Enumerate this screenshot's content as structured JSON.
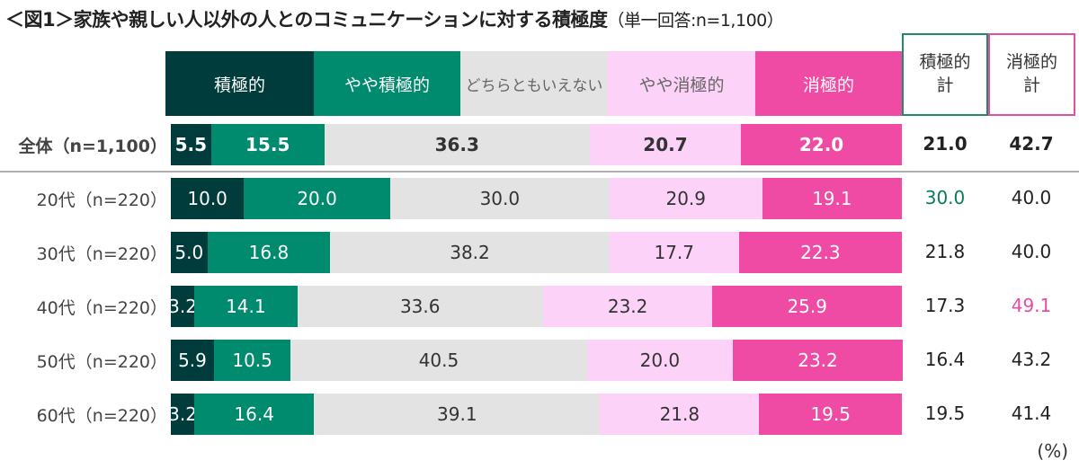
{
  "title": {
    "main": "＜図1＞家族や親しい人以外の人とのコミュニケーションに対する積極度",
    "sub": "（単一回答:n=1,100）"
  },
  "colors": {
    "very_positive": "#003c3c",
    "positive": "#008a6e",
    "neutral": "#e3e3e3",
    "negative": "#fcd2f8",
    "very_negative": "#f04ba4",
    "positive_total_border": "#1f8a6a",
    "negative_total_border": "#e0509f",
    "highlight_green": "#0a7a5c",
    "highlight_pink": "#e0509f"
  },
  "chart_data": {
    "type": "bar",
    "orientation": "horizontal",
    "stacked": true,
    "title": "＜図1＞家族や親しい人以外の人とのコミュニケーションに対する積極度（単一回答:n=1,100）",
    "unit": "(%)",
    "categories": [
      "全体（n=1,100）",
      "20代（n=220）",
      "30代（n=220）",
      "40代（n=220）",
      "50代（n=220）",
      "60代（n=220）"
    ],
    "series": [
      {
        "name": "積極的",
        "values": [
          5.5,
          10.0,
          5.0,
          3.2,
          5.9,
          3.2
        ]
      },
      {
        "name": "やや積極的",
        "values": [
          15.5,
          20.0,
          16.8,
          14.1,
          10.5,
          16.4
        ]
      },
      {
        "name": "どちらともいえない",
        "values": [
          36.3,
          30.0,
          38.2,
          33.6,
          40.5,
          39.1
        ]
      },
      {
        "name": "やや消極的",
        "values": [
          20.7,
          20.9,
          17.7,
          23.2,
          20.0,
          21.8
        ]
      },
      {
        "name": "消極的",
        "values": [
          22.0,
          19.1,
          22.3,
          25.9,
          23.2,
          19.5
        ]
      }
    ],
    "labels": [
      [
        "5.5",
        "15.5",
        "36.3",
        "20.7",
        "22.0"
      ],
      [
        "10.0",
        "20.0",
        "30.0",
        "20.9",
        "19.1"
      ],
      [
        "5.0",
        "16.8",
        "38.2",
        "17.7",
        "22.3"
      ],
      [
        "3.2",
        "14.1",
        "33.6",
        "23.2",
        "25.9"
      ],
      [
        "5.9",
        "10.5",
        "40.5",
        "20.0",
        "23.2"
      ],
      [
        "3.2",
        "16.4",
        "39.1",
        "21.8",
        "19.5"
      ]
    ],
    "totals": {
      "headers": [
        "積極的\n計",
        "消極的\n計"
      ],
      "positive": [
        "21.0",
        "30.0",
        "21.8",
        "17.3",
        "16.4",
        "19.5"
      ],
      "negative": [
        "42.7",
        "40.0",
        "40.0",
        "49.1",
        "43.2",
        "41.4"
      ],
      "highlight_positive_row": 1,
      "highlight_negative_row": 3
    },
    "xlim": [
      0,
      100
    ],
    "legend": "top"
  },
  "headers": {
    "segments": [
      "積極的",
      "やや積極的",
      "どちらともいえない",
      "やや消極的",
      "消極的"
    ],
    "positive_total_line1": "積極的",
    "positive_total_line2": "計",
    "negative_total_line1": "消極的",
    "negative_total_line2": "計"
  },
  "unit_label": "(%)"
}
